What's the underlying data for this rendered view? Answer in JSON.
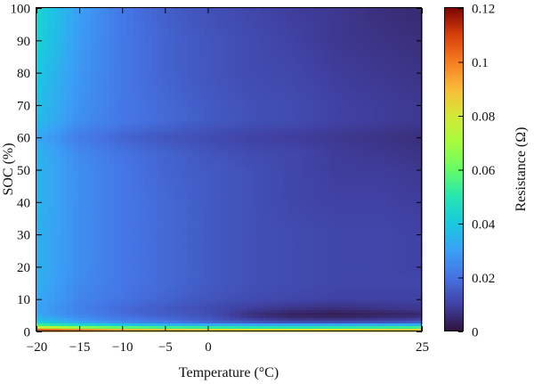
{
  "chart_data": {
    "type": "heatmap",
    "title": "",
    "xlabel": "Temperature (°C)",
    "ylabel": "SOC (%)",
    "colorbar_label": "Resistance (Ω)",
    "xlim": [
      -20,
      25
    ],
    "ylim": [
      0,
      100
    ],
    "clim": [
      0,
      0.12
    ],
    "x_ticks": [
      -20,
      -15,
      -10,
      -5,
      0,
      25
    ],
    "x_tick_labels": [
      "−20",
      "−15",
      "−10",
      "−5",
      "0",
      "25"
    ],
    "y_ticks": [
      0,
      10,
      20,
      30,
      40,
      50,
      60,
      70,
      80,
      90,
      100
    ],
    "y_tick_labels": [
      "0",
      "10",
      "20",
      "30",
      "40",
      "50",
      "60",
      "70",
      "80",
      "90",
      "100"
    ],
    "colorbar_ticks": [
      0,
      0.02,
      0.04,
      0.06,
      0.08,
      0.1,
      0.12
    ],
    "colorbar_tick_labels": [
      "0",
      "0.02",
      "0.04",
      "0.06",
      "0.08",
      "0.1",
      "0.12"
    ],
    "colormap": "turbo",
    "x": [
      -20,
      -15,
      -10,
      -5,
      0,
      5,
      10,
      15,
      20,
      25
    ],
    "y": [
      0,
      1,
      2,
      3,
      5,
      7,
      10,
      15,
      20,
      30,
      40,
      50,
      55,
      60,
      65,
      70,
      80,
      90,
      100
    ],
    "z": [
      [
        0.118,
        0.114,
        0.11,
        0.108,
        0.106,
        0.104,
        0.103,
        0.103,
        0.104,
        0.105
      ],
      [
        0.085,
        0.072,
        0.064,
        0.06,
        0.058,
        0.056,
        0.056,
        0.057,
        0.058,
        0.06
      ],
      [
        0.055,
        0.046,
        0.04,
        0.036,
        0.034,
        0.033,
        0.033,
        0.034,
        0.035,
        0.036
      ],
      [
        0.04,
        0.03,
        0.024,
        0.02,
        0.016,
        0.012,
        0.01,
        0.01,
        0.011,
        0.013
      ],
      [
        0.032,
        0.024,
        0.019,
        0.016,
        0.013,
        0.006,
        0.003,
        0.002,
        0.003,
        0.004
      ],
      [
        0.031,
        0.023,
        0.018,
        0.015,
        0.012,
        0.009,
        0.007,
        0.006,
        0.007,
        0.008
      ],
      [
        0.032,
        0.024,
        0.02,
        0.017,
        0.014,
        0.012,
        0.011,
        0.01,
        0.01,
        0.01
      ],
      [
        0.034,
        0.025,
        0.021,
        0.018,
        0.015,
        0.013,
        0.012,
        0.011,
        0.011,
        0.011
      ],
      [
        0.034,
        0.026,
        0.021,
        0.018,
        0.015,
        0.013,
        0.012,
        0.011,
        0.011,
        0.01
      ],
      [
        0.034,
        0.026,
        0.021,
        0.018,
        0.015,
        0.013,
        0.012,
        0.011,
        0.011,
        0.01
      ],
      [
        0.035,
        0.026,
        0.021,
        0.018,
        0.015,
        0.013,
        0.011,
        0.01,
        0.01,
        0.009
      ],
      [
        0.035,
        0.026,
        0.021,
        0.017,
        0.015,
        0.013,
        0.011,
        0.009,
        0.009,
        0.008
      ],
      [
        0.035,
        0.025,
        0.02,
        0.017,
        0.014,
        0.012,
        0.011,
        0.009,
        0.008,
        0.007
      ],
      [
        0.032,
        0.022,
        0.017,
        0.014,
        0.012,
        0.01,
        0.009,
        0.008,
        0.007,
        0.006
      ],
      [
        0.037,
        0.026,
        0.021,
        0.018,
        0.015,
        0.013,
        0.012,
        0.01,
        0.009,
        0.008
      ],
      [
        0.038,
        0.027,
        0.021,
        0.018,
        0.015,
        0.013,
        0.012,
        0.01,
        0.009,
        0.008
      ],
      [
        0.04,
        0.028,
        0.021,
        0.017,
        0.014,
        0.012,
        0.011,
        0.009,
        0.008,
        0.007
      ],
      [
        0.043,
        0.029,
        0.021,
        0.017,
        0.014,
        0.012,
        0.01,
        0.008,
        0.007,
        0.006
      ],
      [
        0.044,
        0.03,
        0.021,
        0.016,
        0.013,
        0.011,
        0.009,
        0.008,
        0.006,
        0.005
      ]
    ]
  }
}
